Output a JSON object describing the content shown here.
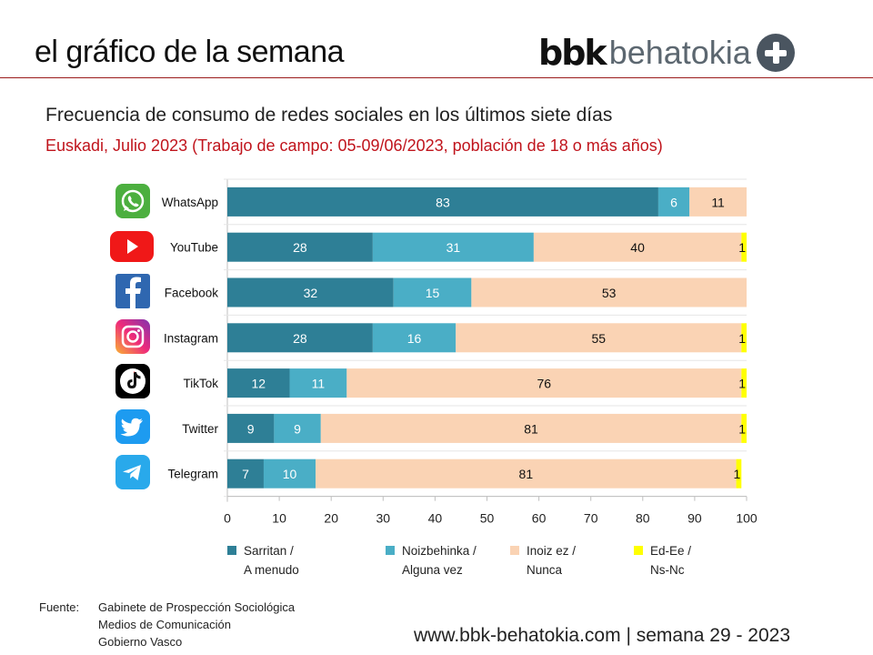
{
  "header": {
    "title": "el gráfico de la semana",
    "logo_bold": "bbk",
    "logo_light": "behatokia"
  },
  "colors": {
    "sarritan": "#2e7f96",
    "noizbehinka": "#4aaec6",
    "inoiz": "#fad3b4",
    "ed": "#ffff00",
    "rule": "#9b1b1b",
    "subtitle": "#c0141c"
  },
  "chart_data": {
    "type": "bar",
    "orientation": "horizontal",
    "stacked": true,
    "title": "Frecuencia de consumo de redes sociales en los últimos siete días",
    "subtitle": "Euskadi, Julio 2023 (Trabajo de campo: 05-09/06/2023, población de 18 o más años)",
    "categories": [
      "WhatsApp",
      "YouTube",
      "Facebook",
      "Instagram",
      "TikTok",
      "Twitter",
      "Telegram"
    ],
    "icons": [
      "whatsapp-icon",
      "youtube-icon",
      "facebook-icon",
      "instagram-icon",
      "tiktok-icon",
      "twitter-icon",
      "telegram-icon"
    ],
    "series": [
      {
        "name": "Sarritan / A menudo",
        "legend_lines": [
          "Sarritan /",
          "A menudo"
        ],
        "color": "#2e7f96",
        "label_color": "#ffffff",
        "values": [
          83,
          28,
          32,
          28,
          12,
          9,
          7
        ]
      },
      {
        "name": "Noizbehinka / Alguna vez",
        "legend_lines": [
          "Noizbehinka /",
          "Alguna vez"
        ],
        "color": "#4aaec6",
        "label_color": "#ffffff",
        "values": [
          6,
          31,
          15,
          16,
          11,
          9,
          10
        ]
      },
      {
        "name": "Inoiz ez / Nunca",
        "legend_lines": [
          "Inoiz ez /",
          "Nunca"
        ],
        "color": "#fad3b4",
        "label_color": "#111111",
        "values": [
          11,
          40,
          53,
          55,
          76,
          81,
          81
        ]
      },
      {
        "name": "Ed-Ee / Ns-Nc",
        "legend_lines": [
          "Ed-Ee /",
          "Ns-Nc"
        ],
        "color": "#ffff00",
        "label_color": "#111111",
        "values": [
          0,
          1,
          0.3,
          1,
          1,
          1,
          1
        ],
        "labels": [
          "",
          "1",
          "",
          "1",
          "1",
          "1",
          "1"
        ]
      }
    ],
    "xlim": [
      0,
      100
    ],
    "xticks": [
      0,
      10,
      20,
      30,
      40,
      50,
      60,
      70,
      80,
      90,
      100
    ],
    "xlabel": "",
    "ylabel": "",
    "grid": false,
    "legend_position": "bottom"
  },
  "source": {
    "label": "Fuente:",
    "lines": [
      "Gabinete de Prospección Sociológica",
      "Medios de Comunicación",
      "Gobierno Vasco"
    ]
  },
  "footer": {
    "text": "www.bbk-behatokia.com | semana 29 - 2023"
  }
}
